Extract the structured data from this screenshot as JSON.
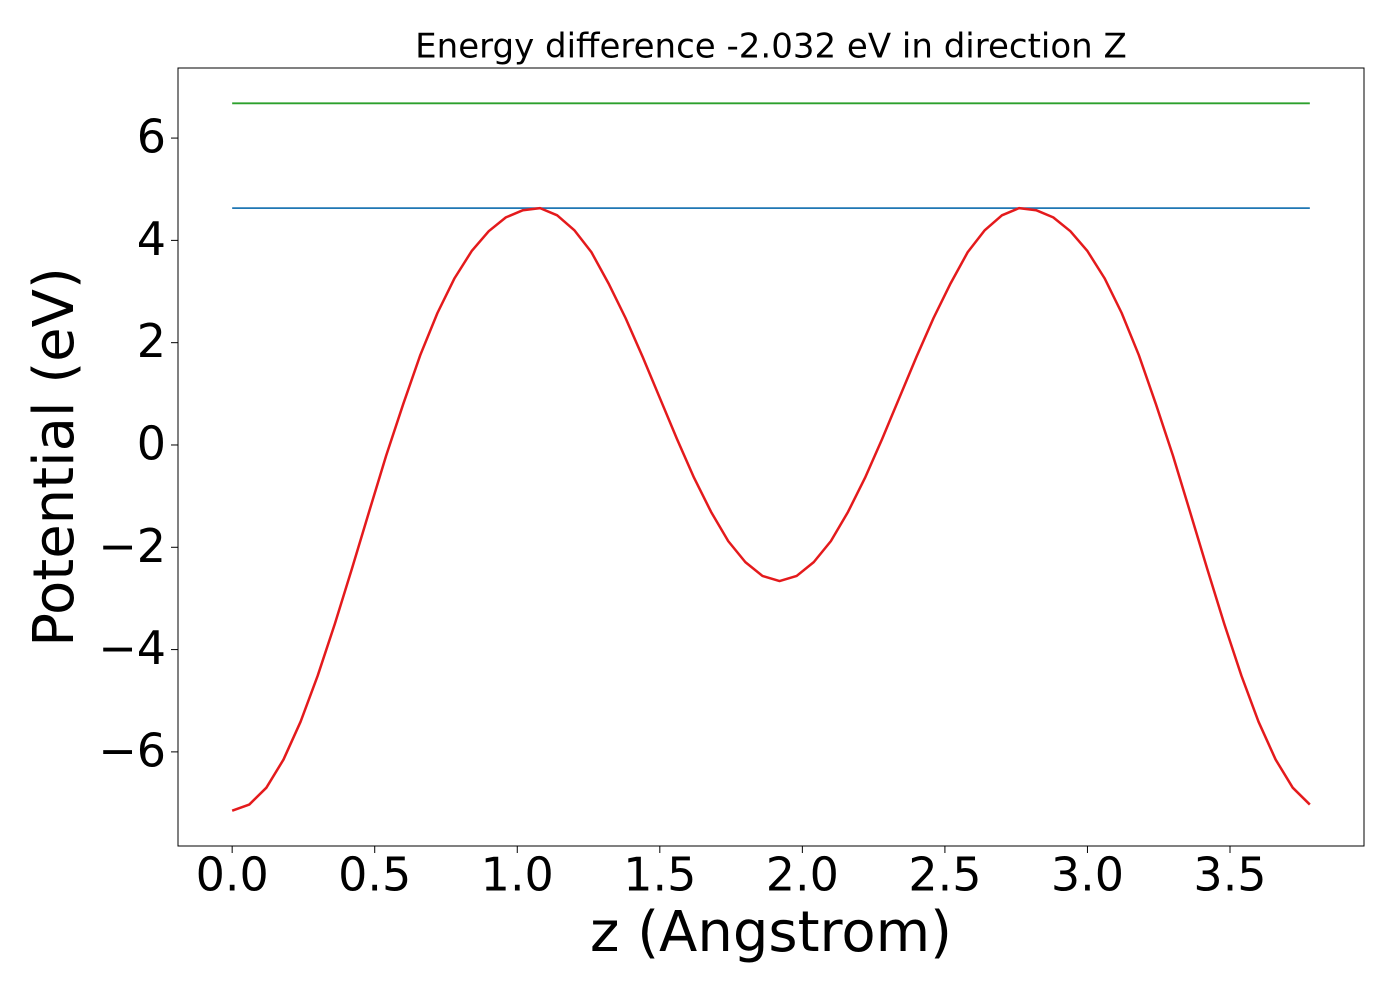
{
  "chart_data": {
    "type": "line",
    "title": "Energy difference -2.032 eV in direction Z",
    "xlabel": "z (Angstrom)",
    "ylabel": "Potential (eV)",
    "xlim": [
      -0.19,
      3.97
    ],
    "ylim": [
      -7.84,
      7.37
    ],
    "xticks": [
      {
        "value": 0,
        "label": "0.0"
      },
      0.5,
      {
        "value": 1,
        "label": "1.0"
      },
      1.5,
      {
        "value": 2,
        "label": "2.0"
      },
      2.5,
      {
        "value": 3,
        "label": "3.0"
      },
      3.5
    ],
    "yticks": [
      {
        "value": -6,
        "label": "−6"
      },
      {
        "value": -4,
        "label": "−4"
      },
      {
        "value": -2,
        "label": "−2"
      },
      0,
      2,
      4,
      6
    ],
    "grid": false,
    "series": [
      {
        "color": "#1f77b4",
        "x": [
          0,
          3.78
        ],
        "values": [
          4.63,
          4.63
        ]
      },
      {
        "color": "#2ca02c",
        "x": [
          0,
          3.78
        ],
        "values": [
          6.68,
          6.68
        ]
      },
      {
        "color": "#e41a1c",
        "x": [
          0,
          0.06,
          0.12,
          0.18,
          0.24,
          0.3,
          0.36,
          0.42,
          0.48,
          0.54,
          0.6,
          0.66,
          0.72,
          0.78,
          0.84,
          0.9,
          0.96,
          1.02,
          1.08,
          1.14,
          1.2,
          1.26,
          1.32,
          1.38,
          1.44,
          1.5,
          1.56,
          1.62,
          1.68,
          1.74,
          1.8,
          1.86,
          1.92,
          1.98,
          2.04,
          2.1,
          2.16,
          2.22,
          2.28,
          2.34,
          2.4,
          2.46,
          2.52,
          2.58,
          2.64,
          2.7,
          2.76,
          2.82,
          2.88,
          2.94,
          3.0,
          3.06,
          3.12,
          3.18,
          3.24,
          3.3,
          3.36,
          3.42,
          3.48,
          3.54,
          3.6,
          3.66,
          3.72,
          3.78
        ],
        "values": [
          -7.15,
          -7.03,
          -6.7,
          -6.15,
          -5.41,
          -4.51,
          -3.5,
          -2.42,
          -1.31,
          -0.21,
          0.8,
          1.76,
          2.58,
          3.26,
          3.79,
          4.18,
          4.45,
          4.59,
          4.63,
          4.49,
          4.2,
          3.77,
          3.16,
          2.48,
          1.72,
          0.92,
          0.12,
          -0.64,
          -1.31,
          -1.88,
          -2.29,
          -2.56,
          -2.66,
          -2.56,
          -2.29,
          -1.88,
          -1.31,
          -0.64,
          0.12,
          0.92,
          1.72,
          2.48,
          3.16,
          3.77,
          4.2,
          4.49,
          4.63,
          4.59,
          4.45,
          4.18,
          3.79,
          3.26,
          2.58,
          1.76,
          0.8,
          -0.21,
          -1.31,
          -2.42,
          -3.5,
          -4.51,
          -5.41,
          -6.15,
          -6.7,
          -7.03
        ]
      }
    ]
  }
}
